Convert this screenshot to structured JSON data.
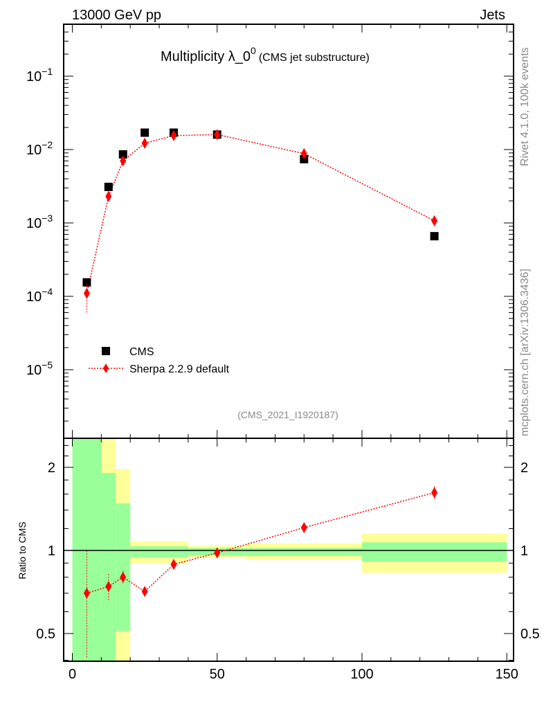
{
  "header": {
    "left": "13000 GeV pp",
    "right": "Jets",
    "title_main": "Multiplicity λ_0",
    "title_sup": "0",
    "title_sub": "(CMS jet substructure)",
    "analysis_id": "(CMS_2021_I1920187)",
    "side_top": "Rivet 4.1.0,  100k events",
    "side_bottom": "mcplots.cern.ch [arXiv:1306.3436]"
  },
  "legend": {
    "data_label": "CMS",
    "mc_label": "Sherpa 2.2.9 default"
  },
  "colors": {
    "data": "#000000",
    "mc": "#ff0000",
    "band_stat": "#99ff99",
    "band_tot": "#ffff99"
  },
  "chart_data": [
    {
      "type": "scatter",
      "title": "Multiplicity λ_0^0 (CMS jet substructure)",
      "yscale": "log",
      "xlim": [
        -3,
        152
      ],
      "ylim": [
        1.1e-06,
        0.5
      ],
      "ytick_base": "10",
      "yticks": [
        {
          "value": 0.1,
          "exp": "−1"
        },
        {
          "value": 0.01,
          "exp": "−2"
        },
        {
          "value": 0.001,
          "exp": "−3"
        },
        {
          "value": 0.0001,
          "exp": "−4"
        },
        {
          "value": 1e-05,
          "exp": "−5"
        }
      ],
      "legend_position": "bottom-left",
      "bins": [
        [
          0,
          10
        ],
        [
          10,
          15
        ],
        [
          15,
          20
        ],
        [
          20,
          30
        ],
        [
          30,
          40
        ],
        [
          40,
          60
        ],
        [
          60,
          100
        ],
        [
          100,
          150
        ]
      ],
      "x": [
        5,
        12.5,
        17.5,
        25,
        35,
        50,
        80,
        125
      ],
      "series": [
        {
          "name": "CMS",
          "values": [
            0.000155,
            0.0031,
            0.0086,
            0.017,
            0.017,
            0.016,
            0.0074,
            0.00066
          ]
        },
        {
          "name": "Sherpa 2.2.9 default",
          "values": [
            0.00011,
            0.0023,
            0.007,
            0.0122,
            0.0155,
            0.016,
            0.0088,
            0.00107
          ],
          "err_low": [
            6e-05,
            0.0021,
            0.0066,
            0.0118,
            0.0152,
            0.0157,
            0.0086,
            0.00102
          ],
          "err_high": [
            0.00015,
            0.0025,
            0.0074,
            0.0126,
            0.0158,
            0.0163,
            0.009,
            0.00112
          ]
        }
      ]
    },
    {
      "type": "scatter",
      "ylabel": "Ratio to CMS",
      "yscale": "log",
      "ylim": [
        0.4,
        2.5
      ],
      "yticks": [
        "0.5",
        "1",
        "2"
      ],
      "ytick_values": [
        0.5,
        1,
        2
      ],
      "xticks": [
        "0",
        "50",
        "100",
        "150"
      ],
      "xtick_values": [
        0,
        50,
        100,
        150
      ],
      "x": [
        5,
        12.5,
        17.5,
        25,
        35,
        50,
        80,
        125
      ],
      "ratio": [
        0.7,
        0.74,
        0.8,
        0.71,
        0.89,
        0.98,
        1.21,
        1.62
      ],
      "ratio_err_low": [
        0.41,
        0.66,
        0.76,
        0.69,
        0.87,
        0.97,
        1.19,
        1.54
      ],
      "ratio_err_high": [
        1.0,
        0.83,
        0.85,
        0.74,
        0.91,
        0.99,
        1.23,
        1.72
      ],
      "band_stat": [
        [
          0.3,
          3.0
        ],
        [
          0.3,
          1.91
        ],
        [
          0.51,
          1.48
        ],
        [
          0.944,
          1.035
        ],
        [
          0.944,
          1.035
        ],
        [
          0.96,
          1.02
        ],
        [
          0.955,
          1.02
        ],
        [
          0.91,
          1.07
        ]
      ],
      "band_total": [
        [
          0.3,
          3.0
        ],
        [
          0.3,
          3.0
        ],
        [
          0.3,
          1.97
        ],
        [
          0.9,
          1.08
        ],
        [
          0.9,
          1.08
        ],
        [
          0.94,
          1.04
        ],
        [
          0.925,
          1.06
        ],
        [
          0.83,
          1.15
        ]
      ]
    }
  ]
}
